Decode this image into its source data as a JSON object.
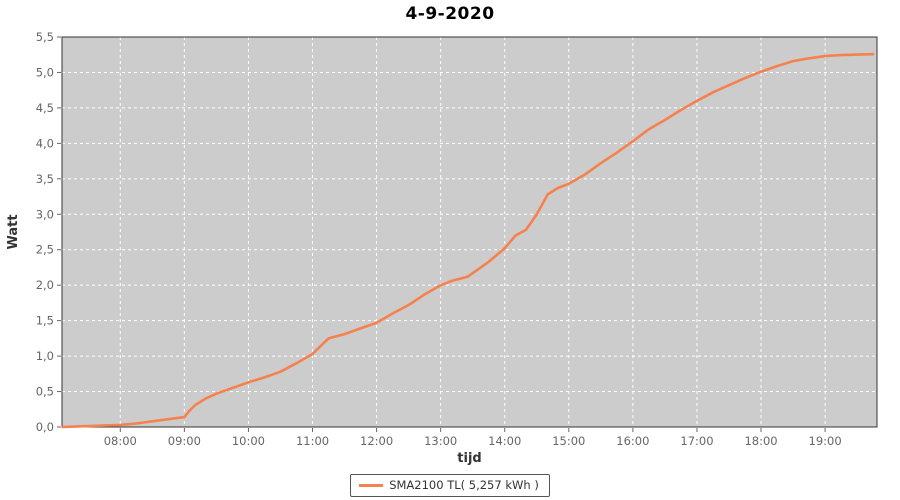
{
  "title": "4-9-2020",
  "colors": {
    "line": "#f5824e",
    "plot_background": "#cccccc",
    "grid": "#ffffff",
    "plot_border": "#333333",
    "tick_text": "#666666",
    "axis_label_text": "#333333",
    "title_text": "#000000",
    "outer_background": "#ffffff"
  },
  "chart_data": {
    "type": "line",
    "title": "4-9-2020",
    "xlabel": "tijd",
    "ylabel": "Watt",
    "xlim": [
      7.09,
      19.81
    ],
    "ylim": [
      0,
      5.5
    ],
    "grid": "white dashed, on",
    "x_ticks": [
      {
        "value": 8,
        "label": "08:00"
      },
      {
        "value": 9,
        "label": "09:00"
      },
      {
        "value": 10,
        "label": "10:00"
      },
      {
        "value": 11,
        "label": "11:00"
      },
      {
        "value": 12,
        "label": "12:00"
      },
      {
        "value": 13,
        "label": "13:00"
      },
      {
        "value": 14,
        "label": "14:00"
      },
      {
        "value": 15,
        "label": "15:00"
      },
      {
        "value": 16,
        "label": "16:00"
      },
      {
        "value": 17,
        "label": "17:00"
      },
      {
        "value": 18,
        "label": "18:00"
      },
      {
        "value": 19,
        "label": "19:00"
      }
    ],
    "y_ticks": [
      {
        "value": 0.0,
        "label": "0,0"
      },
      {
        "value": 0.5,
        "label": "0,5"
      },
      {
        "value": 1.0,
        "label": "1,0"
      },
      {
        "value": 1.5,
        "label": "1,5"
      },
      {
        "value": 2.0,
        "label": "2,0"
      },
      {
        "value": 2.5,
        "label": "2,5"
      },
      {
        "value": 3.0,
        "label": "3,0"
      },
      {
        "value": 3.5,
        "label": "3,5"
      },
      {
        "value": 4.0,
        "label": "4,0"
      },
      {
        "value": 4.5,
        "label": "4,5"
      },
      {
        "value": 5.0,
        "label": "5,0"
      },
      {
        "value": 5.5,
        "label": "5,5"
      }
    ],
    "legend": {
      "position": "bottom-center",
      "label": "SMA2100 TL( 5,257 kWh )"
    },
    "series": [
      {
        "name": "SMA2100 TL( 5,257 kWh )",
        "color": "#f5824e",
        "total_kwh_label": "5,257 kWh",
        "x": [
          7.1,
          7.4,
          7.7,
          8.0,
          8.25,
          8.5,
          8.75,
          9.0,
          9.08,
          9.17,
          9.33,
          9.5,
          9.75,
          10.0,
          10.25,
          10.5,
          10.75,
          11.0,
          11.17,
          11.25,
          11.5,
          11.75,
          12.0,
          12.25,
          12.5,
          12.75,
          13.0,
          13.17,
          13.42,
          13.58,
          13.75,
          14.0,
          14.17,
          14.33,
          14.5,
          14.67,
          14.83,
          15.0,
          15.25,
          15.5,
          15.75,
          16.0,
          16.25,
          16.5,
          16.75,
          17.0,
          17.25,
          17.5,
          17.75,
          18.0,
          18.25,
          18.5,
          18.75,
          19.0,
          19.25,
          19.5,
          19.75
        ],
        "y": [
          0.0,
          0.01,
          0.02,
          0.03,
          0.05,
          0.08,
          0.11,
          0.14,
          0.23,
          0.31,
          0.4,
          0.47,
          0.55,
          0.63,
          0.7,
          0.78,
          0.9,
          1.03,
          1.18,
          1.25,
          1.31,
          1.39,
          1.47,
          1.6,
          1.72,
          1.87,
          2.0,
          2.06,
          2.12,
          2.22,
          2.33,
          2.52,
          2.7,
          2.78,
          3.0,
          3.28,
          3.37,
          3.43,
          3.56,
          3.72,
          3.87,
          4.03,
          4.2,
          4.33,
          4.47,
          4.6,
          4.72,
          4.82,
          4.92,
          5.01,
          5.09,
          5.16,
          5.2,
          5.23,
          5.245,
          5.252,
          5.257
        ]
      }
    ]
  }
}
